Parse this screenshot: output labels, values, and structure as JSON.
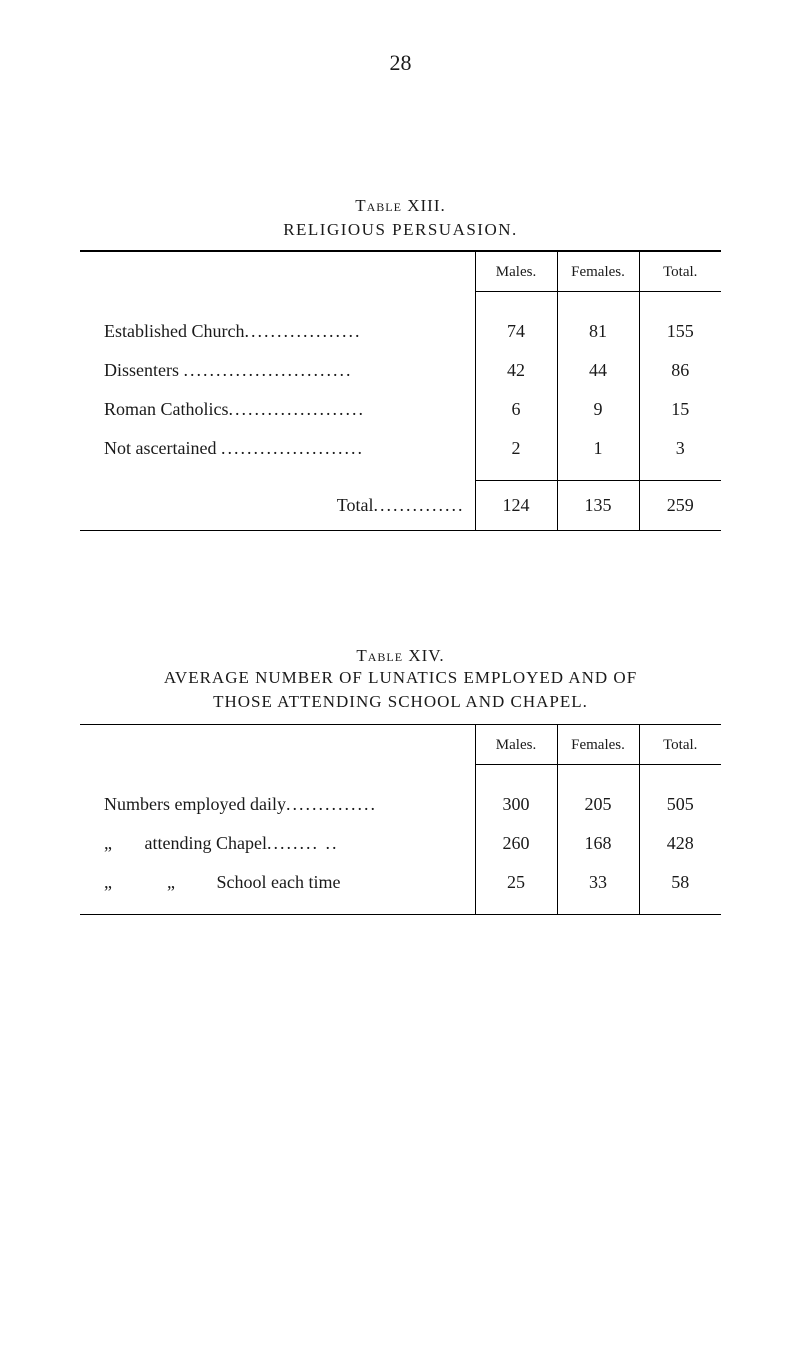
{
  "page_number": "28",
  "table13": {
    "label": "Table XIII.",
    "title": "RELIGIOUS PERSUASION.",
    "headers": {
      "males": "Males.",
      "females": "Females.",
      "total": "Total."
    },
    "rows": [
      {
        "label": "Established Church",
        "males": "74",
        "females": "81",
        "total": "155"
      },
      {
        "label": "Dissenters",
        "males": "42",
        "females": "44",
        "total": "86"
      },
      {
        "label": "Roman Catholics",
        "males": "6",
        "females": "9",
        "total": "15"
      },
      {
        "label": "Not ascertained",
        "males": "2",
        "females": "1",
        "total": "3"
      }
    ],
    "total_label": "Total",
    "totals": {
      "males": "124",
      "females": "135",
      "total": "259"
    }
  },
  "table14": {
    "label": "Table XIV.",
    "title_line1": "AVERAGE NUMBER OF LUNATICS EMPLOYED AND OF",
    "title_line2": "THOSE ATTENDING SCHOOL AND CHAPEL.",
    "headers": {
      "males": "Males.",
      "females": "Females.",
      "total": "Total."
    },
    "rows": [
      {
        "label": "Numbers employed daily",
        "males": "300",
        "females": "205",
        "total": "505"
      },
      {
        "prefix": "„",
        "label": "attending Chapel",
        "males": "260",
        "females": "168",
        "total": "428"
      },
      {
        "prefix": "„",
        "prefix2": "„",
        "label": "School each time",
        "males": "25",
        "females": "33",
        "total": "58"
      }
    ]
  },
  "style": {
    "text_color": "#1a1a1a",
    "background": "#ffffff",
    "border_color": "#000000"
  }
}
